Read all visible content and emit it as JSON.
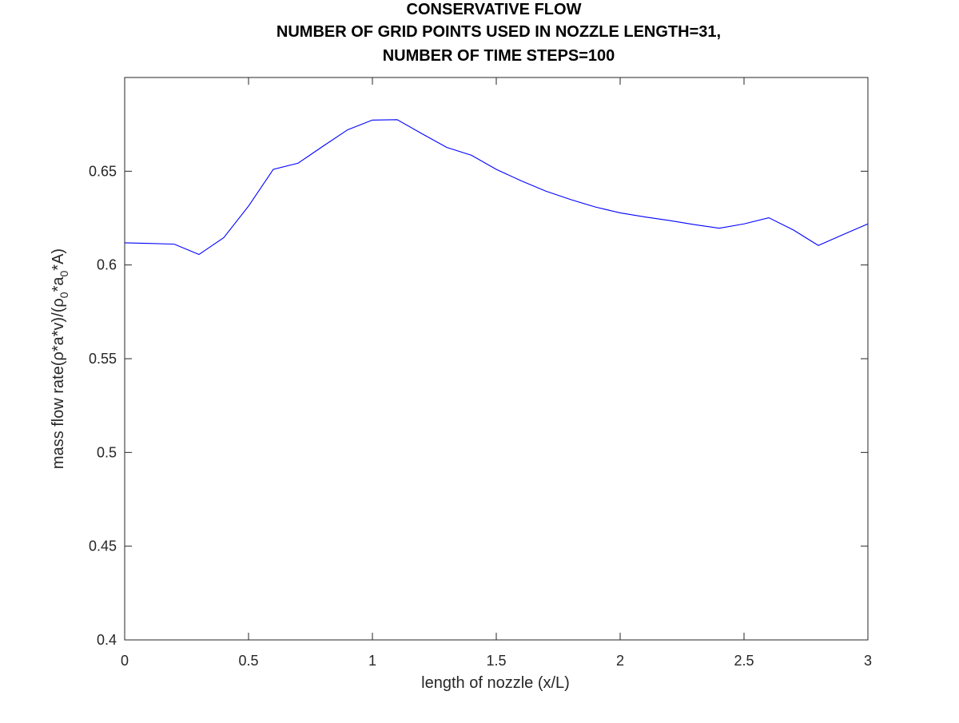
{
  "chart_data": {
    "type": "line",
    "title_lines": [
      "CONSERVATIVE FLOW",
      "NUMBER OF GRID POINTS USED IN NOZZLE LENGTH=31,",
      "NUMBER OF TIME STEPS=100"
    ],
    "xlabel": "length of nozzle (x/L)",
    "ylabel": {
      "prefix": "mass flow rate(ρ*a*v)/(ρ",
      "sub1": "0",
      "mid": "*a",
      "sub2": "0",
      "suffix": "*A)"
    },
    "xlim": [
      0,
      3
    ],
    "ylim": [
      0.4,
      0.7
    ],
    "xticks": [
      0,
      0.5,
      1,
      1.5,
      2,
      2.5,
      3
    ],
    "xtick_labels": [
      "0",
      "0.5",
      "1",
      "1.5",
      "2",
      "2.5",
      "3"
    ],
    "yticks": [
      0.4,
      0.45,
      0.5,
      0.55,
      0.6,
      0.65
    ],
    "ytick_labels": [
      "0.4",
      "0.45",
      "0.5",
      "0.55",
      "0.6",
      "0.65"
    ],
    "grid": false,
    "legend": "none",
    "series": [
      {
        "color": "#0000ff",
        "x": [
          0,
          0.1,
          0.2,
          0.3,
          0.4,
          0.5,
          0.6,
          0.7,
          0.8,
          0.9,
          1.0,
          1.1,
          1.2,
          1.3,
          1.4,
          1.5,
          1.6,
          1.7,
          1.8,
          1.9,
          2.0,
          2.1,
          2.2,
          2.3,
          2.4,
          2.5,
          2.6,
          2.7,
          2.8,
          2.9,
          3.0
        ],
        "y": [
          0.6118,
          0.6115,
          0.6111,
          0.6056,
          0.6146,
          0.6314,
          0.651,
          0.6543,
          0.6633,
          0.6721,
          0.6773,
          0.6775,
          0.67,
          0.6627,
          0.6585,
          0.651,
          0.6449,
          0.6394,
          0.6349,
          0.6309,
          0.6278,
          0.6256,
          0.6237,
          0.6215,
          0.6196,
          0.6219,
          0.6252,
          0.6186,
          0.6104,
          0.6162,
          0.6219
        ]
      }
    ]
  }
}
